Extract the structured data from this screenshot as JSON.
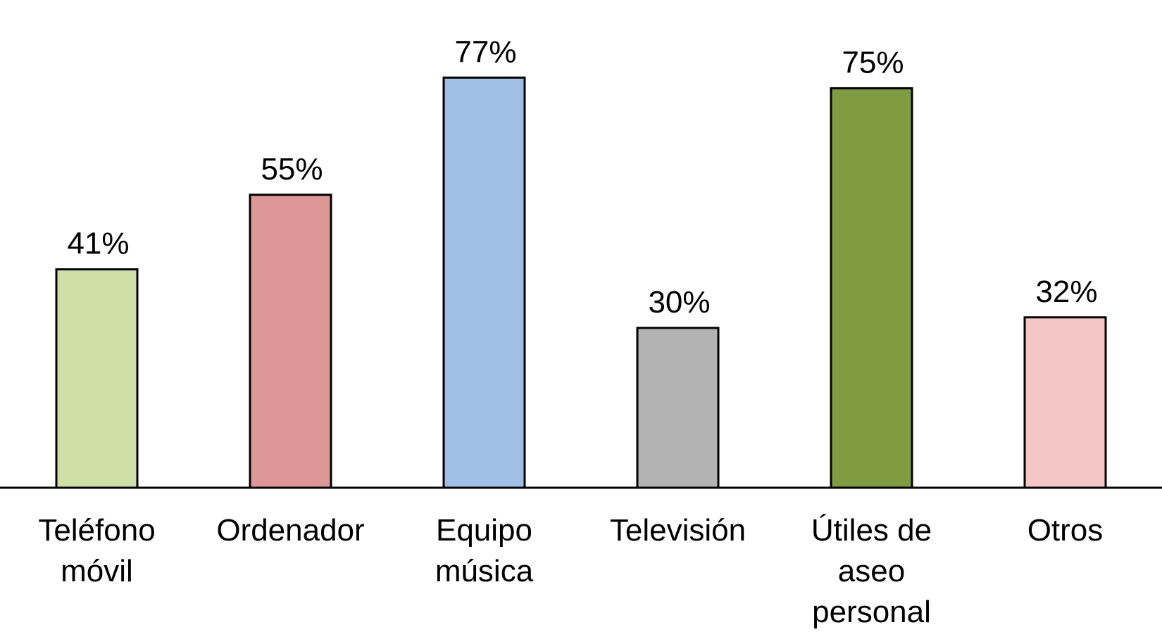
{
  "chart_data": {
    "type": "bar",
    "title": "",
    "xlabel": "",
    "ylabel": "",
    "ylim": [
      0,
      100
    ],
    "grid": false,
    "legend": "none",
    "value_suffix": "%",
    "categories": [
      [
        "Teléfono",
        "móvil"
      ],
      [
        "Ordenador"
      ],
      [
        "Equipo",
        "música"
      ],
      [
        "Televisión"
      ],
      [
        "Útiles de",
        "aseo",
        "personal"
      ],
      [
        "Otros"
      ]
    ],
    "values": [
      41,
      55,
      77,
      30,
      75,
      32
    ],
    "colors": [
      "#cfe0a6",
      "#dd9796",
      "#a0bfe6",
      "#b3b3b3",
      "#7f9c42",
      "#f4c6c6"
    ]
  }
}
